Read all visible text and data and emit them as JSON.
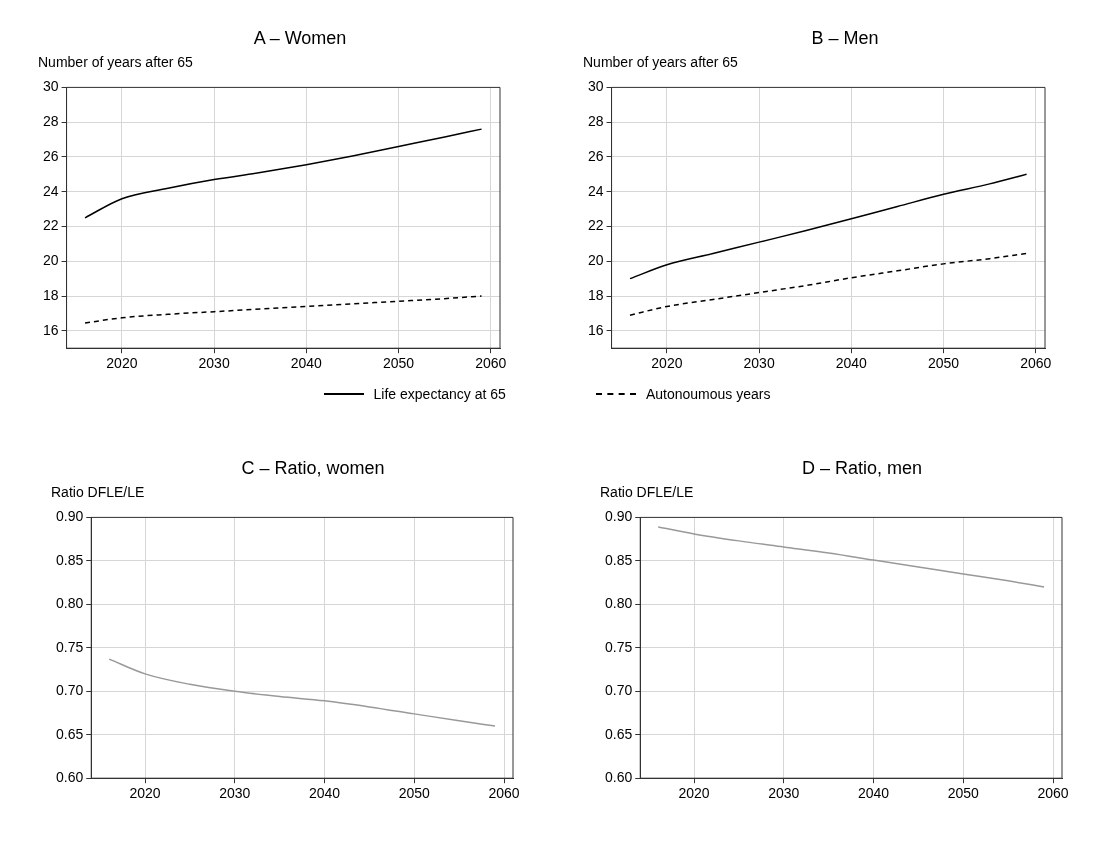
{
  "chart_data": [
    {
      "type": "line",
      "title": "A – Women",
      "ylabel": "Number of years after 65",
      "xlim": [
        2014,
        2061
      ],
      "xticks": [
        2020,
        2030,
        2040,
        2050,
        2060
      ],
      "ylim": [
        15,
        30
      ],
      "yticks": [
        16,
        18,
        20,
        22,
        24,
        26,
        28,
        30
      ],
      "grid": true,
      "legend": "bottom",
      "marker": "none",
      "x": [
        2016,
        2020,
        2025,
        2030,
        2035,
        2040,
        2045,
        2050,
        2055,
        2059
      ],
      "series": [
        {
          "name": "Life expectancy at 65",
          "color": "#000000",
          "line_style": "solid",
          "values": [
            22.5,
            23.6,
            24.2,
            24.7,
            25.1,
            25.55,
            26.05,
            26.6,
            27.15,
            27.6
          ]
        },
        {
          "name": "Autonoumous years",
          "color": "#000000",
          "line_style": "dashed",
          "values": [
            16.45,
            16.75,
            16.95,
            17.1,
            17.25,
            17.4,
            17.55,
            17.7,
            17.85,
            18.0
          ]
        }
      ]
    },
    {
      "type": "line",
      "title": "B – Men",
      "ylabel": "Number of years after 65",
      "xlim": [
        2014,
        2061
      ],
      "xticks": [
        2020,
        2030,
        2040,
        2050,
        2060
      ],
      "ylim": [
        15,
        30
      ],
      "yticks": [
        16,
        18,
        20,
        22,
        24,
        26,
        28,
        30
      ],
      "grid": true,
      "marker": "none",
      "x": [
        2016,
        2020,
        2025,
        2030,
        2035,
        2040,
        2045,
        2050,
        2055,
        2059
      ],
      "series": [
        {
          "color": "#000000",
          "line_style": "solid",
          "values": [
            19.0,
            19.8,
            20.45,
            21.1,
            21.75,
            22.45,
            23.15,
            23.85,
            24.45,
            25.0
          ]
        },
        {
          "color": "#000000",
          "line_style": "dashed",
          "values": [
            16.9,
            17.4,
            17.8,
            18.2,
            18.6,
            19.05,
            19.45,
            19.85,
            20.15,
            20.45
          ]
        }
      ]
    },
    {
      "type": "line",
      "title": "C – Ratio, women",
      "ylabel": "Ratio DFLE/LE",
      "xlim": [
        2014,
        2061
      ],
      "xticks": [
        2020,
        2030,
        2040,
        2050,
        2060
      ],
      "ylim": [
        0.6,
        0.9
      ],
      "yticks": [
        {
          "value": 0.6,
          "label": "0.60"
        },
        {
          "value": 0.65,
          "label": "0.65"
        },
        {
          "value": 0.7,
          "label": "0.70"
        },
        {
          "value": 0.75,
          "label": "0.75"
        },
        {
          "value": 0.8,
          "label": "0.80"
        },
        {
          "value": 0.85,
          "label": "0.85"
        },
        {
          "value": 0.9,
          "label": "0.90"
        }
      ],
      "grid": true,
      "marker": "none",
      "x": [
        2016,
        2020,
        2025,
        2030,
        2035,
        2040,
        2045,
        2050,
        2055,
        2059
      ],
      "series": [
        {
          "color": "#999999",
          "line_style": "solid",
          "values": [
            0.737,
            0.72,
            0.708,
            0.7,
            0.694,
            0.689,
            0.682,
            0.674,
            0.666,
            0.66
          ]
        }
      ]
    },
    {
      "type": "line",
      "title": "D –  Ratio, men",
      "ylabel": "Ratio DFLE/LE",
      "xlim": [
        2014,
        2061
      ],
      "xticks": [
        2020,
        2030,
        2040,
        2050,
        2060
      ],
      "ylim": [
        0.6,
        0.9
      ],
      "yticks": [
        {
          "value": 0.6,
          "label": "0.60"
        },
        {
          "value": 0.65,
          "label": "0.65"
        },
        {
          "value": 0.7,
          "label": "0.70"
        },
        {
          "value": 0.75,
          "label": "0.75"
        },
        {
          "value": 0.8,
          "label": "0.80"
        },
        {
          "value": 0.85,
          "label": "0.85"
        },
        {
          "value": 0.9,
          "label": "0.90"
        }
      ],
      "grid": true,
      "marker": "none",
      "x": [
        2016,
        2020,
        2025,
        2030,
        2035,
        2040,
        2045,
        2050,
        2055,
        2059
      ],
      "series": [
        {
          "color": "#999999",
          "line_style": "solid",
          "values": [
            0.889,
            0.881,
            0.873,
            0.866,
            0.859,
            0.851,
            0.843,
            0.835,
            0.827,
            0.82
          ]
        }
      ]
    }
  ]
}
